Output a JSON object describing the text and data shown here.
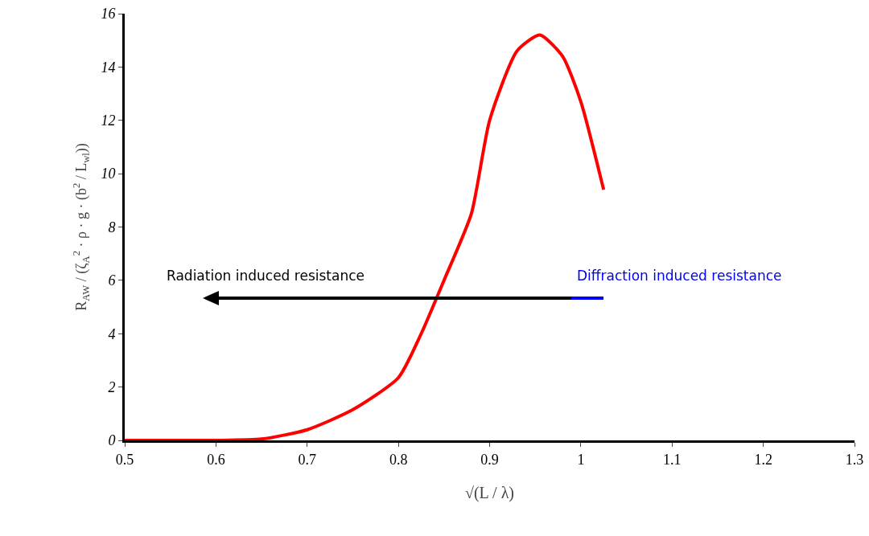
{
  "chart_data": {
    "type": "line",
    "xlabel": "√(L / λ)",
    "ylabel": "R$_{AW}$ / (ζ$_{A}$$^{2}$ · ρ · g · (b$^{2}$ / L$_{wl}$))",
    "x": [
      0.5,
      0.55,
      0.6,
      0.65,
      0.7,
      0.75,
      0.8,
      0.825,
      0.85,
      0.88,
      0.9,
      0.93,
      0.955,
      0.98,
      1.0,
      1.025
    ],
    "series": [
      {
        "color": "#ff0000",
        "values": [
          0,
          0,
          0,
          0.05,
          0.4,
          1.15,
          2.35,
          4.0,
          6.0,
          8.5,
          12.0,
          14.6,
          15.2,
          14.4,
          12.7,
          9.4
        ]
      }
    ],
    "xlim": [
      0.5,
      1.3
    ],
    "xticks": [
      0.5,
      0.6,
      0.7,
      0.8,
      0.9,
      1,
      1.1,
      1.2,
      1.3
    ],
    "ylim": [
      0,
      16
    ],
    "yticks": [
      0,
      2,
      4,
      6,
      8,
      10,
      12,
      14,
      16
    ],
    "grid": false,
    "marker": "none",
    "line_style": "solid",
    "annotations": [
      "Radiation induced resistance",
      "Diffraction induced resistance"
    ]
  }
}
